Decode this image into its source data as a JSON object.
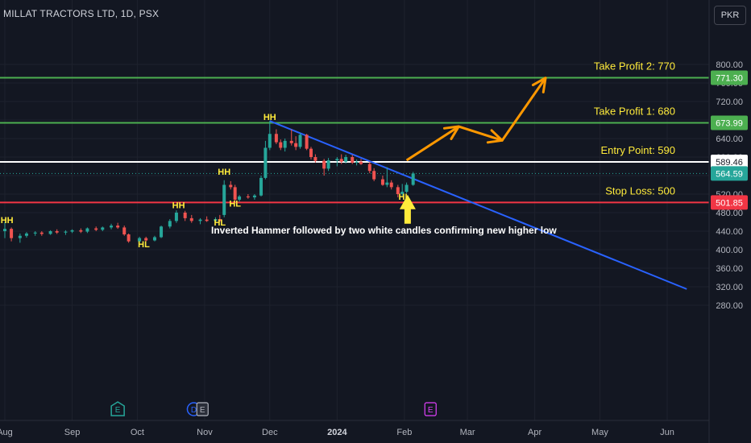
{
  "header": {
    "title": "MILLAT TRACTORS LTD, 1D, PSX",
    "currency_button": "PKR"
  },
  "colors": {
    "background": "#131722",
    "grid": "#1e222d",
    "up": "#26a69a",
    "down": "#ef5350",
    "trendline": "#2962ff",
    "arrow": "#ff9800",
    "label": "#ffeb3b",
    "take_profit": "#4caf50",
    "entry": "#ffffff",
    "stop": "#f23645",
    "last_price": "#26a69a"
  },
  "chart_data": {
    "type": "candlestick",
    "y_axis": {
      "ticks": [
        800,
        760,
        720,
        680,
        640,
        600,
        560,
        520,
        480,
        440,
        400,
        360,
        320,
        280
      ],
      "ylim": [
        260,
        820
      ]
    },
    "x_axis": {
      "labels": [
        "Aug",
        "Sep",
        "Oct",
        "Nov",
        "Dec",
        "2024",
        "Feb",
        "Mar",
        "Apr",
        "May",
        "Jun"
      ]
    },
    "price_levels": [
      {
        "value": 771.3,
        "label": "771.30",
        "text": "Take Profit 2: 770",
        "color": "#4caf50"
      },
      {
        "value": 673.99,
        "label": "673.99",
        "text": "Take Profit 1: 680",
        "color": "#4caf50"
      },
      {
        "value": 589.46,
        "label": "589.46",
        "text": "Entry Point: 590",
        "color": "#ffffff"
      },
      {
        "value": 501.85,
        "label": "501.85",
        "text": "Stop Loss: 500",
        "color": "#f23645"
      }
    ],
    "last_price": {
      "value": 564.59,
      "label": "564.59"
    },
    "swing_labels": [
      {
        "text": "HH",
        "date": "2023-08-02",
        "price": 457
      },
      {
        "text": "HL",
        "date": "2023-10-04",
        "price": 405
      },
      {
        "text": "HH",
        "date": "2023-10-20",
        "price": 490
      },
      {
        "text": "HL",
        "date": "2023-11-08",
        "price": 452
      },
      {
        "text": "HH",
        "date": "2023-11-10",
        "price": 562
      },
      {
        "text": "HL",
        "date": "2023-11-15",
        "price": 493
      },
      {
        "text": "HH",
        "date": "2023-12-01",
        "price": 680
      },
      {
        "text": "HL",
        "date": "2024-02-01",
        "price": 508
      }
    ],
    "annotation": "Inverted Hammer followed by two white candles confirming new higher low",
    "trendline": {
      "start": {
        "date": "2023-12-01",
        "price": 678
      },
      "end": {
        "date": "2024-06-10",
        "price": 315
      }
    },
    "event_markers": [
      {
        "letter": "E",
        "date": "2023-09-22",
        "color": "#26a69a"
      },
      {
        "letter": "D",
        "date": "2023-10-27",
        "color": "#2962ff"
      },
      {
        "letter": "E",
        "date": "2023-10-31",
        "color": "#b2b5be"
      },
      {
        "letter": "E",
        "date": "2024-02-13",
        "color": "#e040fb"
      }
    ],
    "candles": [
      {
        "d": "2023-07-24",
        "o": 396,
        "h": 402,
        "l": 393,
        "c": 398
      },
      {
        "d": "2023-07-28",
        "o": 398,
        "h": 455,
        "l": 396,
        "c": 450
      },
      {
        "d": "2023-08-01",
        "o": 440,
        "h": 460,
        "l": 425,
        "c": 445
      },
      {
        "d": "2023-08-04",
        "o": 445,
        "h": 448,
        "l": 418,
        "c": 425
      },
      {
        "d": "2023-08-08",
        "o": 425,
        "h": 435,
        "l": 415,
        "c": 430
      },
      {
        "d": "2023-08-11",
        "o": 430,
        "h": 438,
        "l": 426,
        "c": 435
      },
      {
        "d": "2023-08-15",
        "o": 435,
        "h": 440,
        "l": 430,
        "c": 437
      },
      {
        "d": "2023-08-18",
        "o": 437,
        "h": 440,
        "l": 430,
        "c": 434
      },
      {
        "d": "2023-08-22",
        "o": 434,
        "h": 442,
        "l": 432,
        "c": 440
      },
      {
        "d": "2023-08-25",
        "o": 440,
        "h": 444,
        "l": 434,
        "c": 437
      },
      {
        "d": "2023-08-29",
        "o": 437,
        "h": 442,
        "l": 432,
        "c": 439
      },
      {
        "d": "2023-09-01",
        "o": 439,
        "h": 444,
        "l": 436,
        "c": 442
      },
      {
        "d": "2023-09-05",
        "o": 442,
        "h": 446,
        "l": 436,
        "c": 439
      },
      {
        "d": "2023-09-08",
        "o": 439,
        "h": 448,
        "l": 436,
        "c": 446
      },
      {
        "d": "2023-09-12",
        "o": 446,
        "h": 450,
        "l": 440,
        "c": 443
      },
      {
        "d": "2023-09-15",
        "o": 443,
        "h": 450,
        "l": 440,
        "c": 448
      },
      {
        "d": "2023-09-19",
        "o": 448,
        "h": 456,
        "l": 444,
        "c": 452
      },
      {
        "d": "2023-09-22",
        "o": 452,
        "h": 458,
        "l": 445,
        "c": 448
      },
      {
        "d": "2023-09-25",
        "o": 448,
        "h": 452,
        "l": 430,
        "c": 433
      },
      {
        "d": "2023-09-27",
        "o": 433,
        "h": 435,
        "l": 415,
        "c": 418
      },
      {
        "d": "2023-10-02",
        "o": 418,
        "h": 428,
        "l": 415,
        "c": 425
      },
      {
        "d": "2023-10-05",
        "o": 425,
        "h": 428,
        "l": 418,
        "c": 420
      },
      {
        "d": "2023-10-09",
        "o": 420,
        "h": 430,
        "l": 418,
        "c": 427
      },
      {
        "d": "2023-10-12",
        "o": 427,
        "h": 452,
        "l": 425,
        "c": 450
      },
      {
        "d": "2023-10-16",
        "o": 450,
        "h": 466,
        "l": 446,
        "c": 462
      },
      {
        "d": "2023-10-19",
        "o": 462,
        "h": 485,
        "l": 458,
        "c": 480
      },
      {
        "d": "2023-10-23",
        "o": 480,
        "h": 484,
        "l": 462,
        "c": 468
      },
      {
        "d": "2023-10-26",
        "o": 468,
        "h": 475,
        "l": 458,
        "c": 462
      },
      {
        "d": "2023-10-30",
        "o": 462,
        "h": 468,
        "l": 455,
        "c": 465
      },
      {
        "d": "2023-11-02",
        "o": 465,
        "h": 472,
        "l": 460,
        "c": 462
      },
      {
        "d": "2023-11-06",
        "o": 462,
        "h": 470,
        "l": 458,
        "c": 466
      },
      {
        "d": "2023-11-08",
        "o": 466,
        "h": 475,
        "l": 460,
        "c": 462
      },
      {
        "d": "2023-11-10",
        "o": 475,
        "h": 550,
        "l": 470,
        "c": 540
      },
      {
        "d": "2023-11-13",
        "o": 540,
        "h": 548,
        "l": 530,
        "c": 535
      },
      {
        "d": "2023-11-15",
        "o": 535,
        "h": 540,
        "l": 505,
        "c": 508
      },
      {
        "d": "2023-11-17",
        "o": 508,
        "h": 518,
        "l": 504,
        "c": 515
      },
      {
        "d": "2023-11-21",
        "o": 515,
        "h": 520,
        "l": 510,
        "c": 513
      },
      {
        "d": "2023-11-24",
        "o": 513,
        "h": 520,
        "l": 508,
        "c": 517
      },
      {
        "d": "2023-11-27",
        "o": 517,
        "h": 560,
        "l": 515,
        "c": 555
      },
      {
        "d": "2023-11-29",
        "o": 555,
        "h": 635,
        "l": 552,
        "c": 620
      },
      {
        "d": "2023-12-01",
        "o": 620,
        "h": 678,
        "l": 615,
        "c": 650
      },
      {
        "d": "2023-12-04",
        "o": 650,
        "h": 660,
        "l": 628,
        "c": 632
      },
      {
        "d": "2023-12-06",
        "o": 632,
        "h": 638,
        "l": 615,
        "c": 620
      },
      {
        "d": "2023-12-08",
        "o": 620,
        "h": 640,
        "l": 612,
        "c": 635
      },
      {
        "d": "2023-12-11",
        "o": 635,
        "h": 660,
        "l": 625,
        "c": 630
      },
      {
        "d": "2023-12-13",
        "o": 630,
        "h": 645,
        "l": 615,
        "c": 622
      },
      {
        "d": "2023-12-15",
        "o": 622,
        "h": 652,
        "l": 618,
        "c": 648
      },
      {
        "d": "2023-12-18",
        "o": 648,
        "h": 650,
        "l": 615,
        "c": 618
      },
      {
        "d": "2023-12-20",
        "o": 618,
        "h": 622,
        "l": 595,
        "c": 600
      },
      {
        "d": "2023-12-22",
        "o": 600,
        "h": 606,
        "l": 588,
        "c": 592
      },
      {
        "d": "2023-12-26",
        "o": 592,
        "h": 596,
        "l": 560,
        "c": 575
      },
      {
        "d": "2023-12-28",
        "o": 575,
        "h": 598,
        "l": 570,
        "c": 593
      },
      {
        "d": "2024-01-01",
        "o": 593,
        "h": 600,
        "l": 580,
        "c": 596
      },
      {
        "d": "2024-01-03",
        "o": 596,
        "h": 606,
        "l": 585,
        "c": 590
      },
      {
        "d": "2024-01-05",
        "o": 590,
        "h": 605,
        "l": 586,
        "c": 600
      },
      {
        "d": "2024-01-08",
        "o": 600,
        "h": 605,
        "l": 585,
        "c": 588
      },
      {
        "d": "2024-01-10",
        "o": 588,
        "h": 595,
        "l": 582,
        "c": 590
      },
      {
        "d": "2024-01-12",
        "o": 590,
        "h": 596,
        "l": 583,
        "c": 585
      },
      {
        "d": "2024-01-16",
        "o": 585,
        "h": 590,
        "l": 565,
        "c": 570
      },
      {
        "d": "2024-01-18",
        "o": 570,
        "h": 576,
        "l": 548,
        "c": 552
      },
      {
        "d": "2024-01-22",
        "o": 552,
        "h": 560,
        "l": 538,
        "c": 540
      },
      {
        "d": "2024-01-24",
        "o": 540,
        "h": 578,
        "l": 535,
        "c": 545
      },
      {
        "d": "2024-01-26",
        "o": 545,
        "h": 550,
        "l": 530,
        "c": 535
      },
      {
        "d": "2024-01-29",
        "o": 535,
        "h": 540,
        "l": 513,
        "c": 520
      },
      {
        "d": "2024-01-31",
        "o": 520,
        "h": 542,
        "l": 516,
        "c": 525
      },
      {
        "d": "2024-02-02",
        "o": 525,
        "h": 545,
        "l": 522,
        "c": 540
      },
      {
        "d": "2024-02-05",
        "o": 540,
        "h": 568,
        "l": 538,
        "c": 564.59
      }
    ]
  }
}
